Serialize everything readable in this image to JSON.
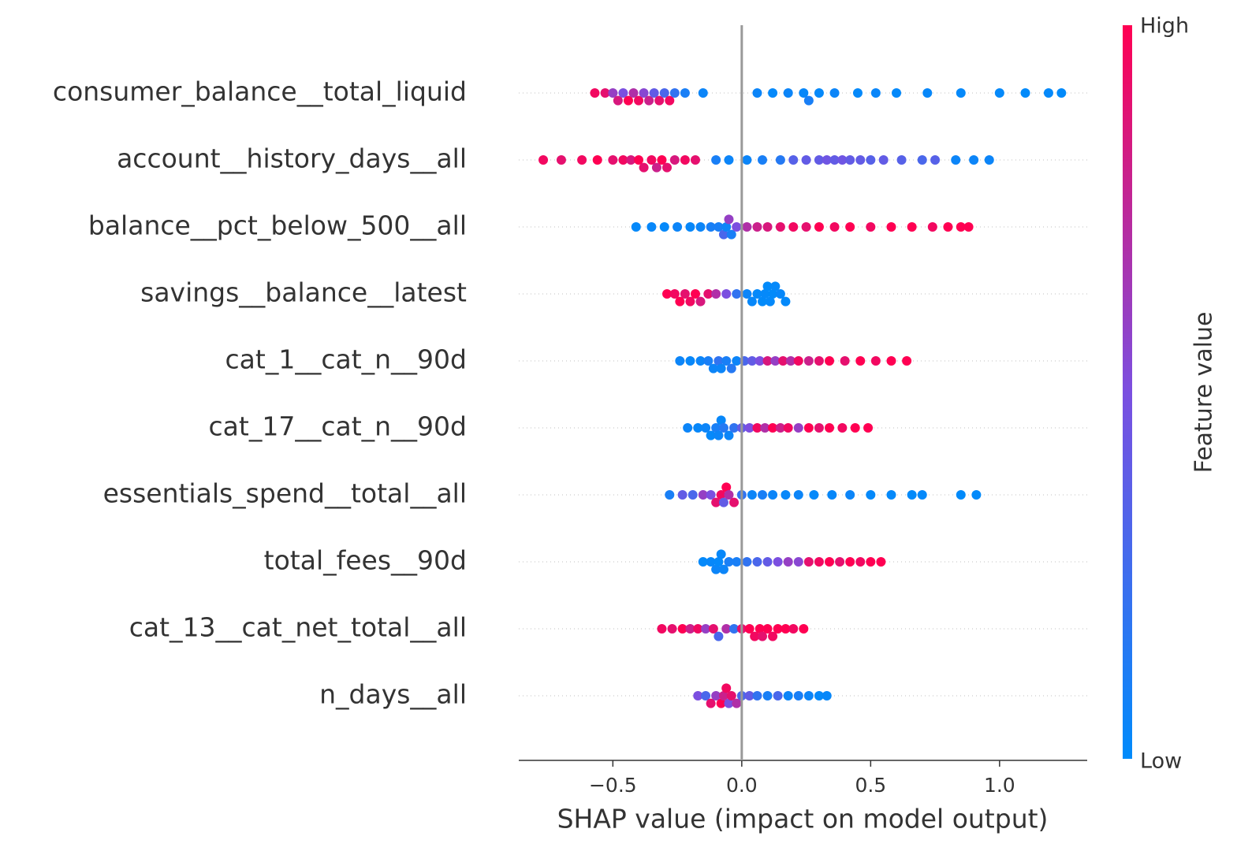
{
  "chart_data": {
    "type": "beeswarm",
    "xlabel": "SHAP value (impact on model output)",
    "xlim": [
      -0.865,
      1.34
    ],
    "xticks": [
      {
        "value": -0.5,
        "label": "−0.5"
      },
      {
        "value": 0,
        "label": "0.0"
      },
      {
        "value": 0.5,
        "label": "0.5"
      },
      {
        "value": 1,
        "label": "1.0"
      }
    ],
    "colorbar": {
      "label": "Feature value",
      "high": "High",
      "low": "Low",
      "colormap": [
        "#008bfb",
        "#7b4fe0",
        "#ff0052"
      ]
    },
    "rows": [
      {
        "name": "consumer_balance__total_liquid",
        "values": [
          -0.57,
          -0.53,
          -0.5,
          -0.48,
          -0.46,
          -0.44,
          -0.42,
          -0.4,
          -0.38,
          -0.36,
          -0.34,
          -0.32,
          -0.3,
          -0.28,
          -0.26,
          -0.22,
          -0.15,
          0.06,
          0.12,
          0.18,
          0.24,
          0.26,
          0.3,
          0.36,
          0.45,
          0.52,
          0.6,
          0.72,
          0.85,
          1.0,
          1.1,
          1.19,
          1.24
        ],
        "feature_values": [
          0.95,
          0.9,
          0.6,
          0.85,
          0.5,
          1,
          0.7,
          0.95,
          0.55,
          0.8,
          0.4,
          0.9,
          0.3,
          0.95,
          0.2,
          0.1,
          0.05,
          0.05,
          0.02,
          0.05,
          0.03,
          0.1,
          0.02,
          0.05,
          0.02,
          0.04,
          0.02,
          0.03,
          0.02,
          0.02,
          0.01,
          0.02,
          0.01
        ]
      },
      {
        "name": "account__history_days__all",
        "values": [
          -0.77,
          -0.7,
          -0.62,
          -0.56,
          -0.5,
          -0.46,
          -0.43,
          -0.4,
          -0.38,
          -0.35,
          -0.33,
          -0.31,
          -0.29,
          -0.26,
          -0.22,
          -0.18,
          -0.1,
          -0.05,
          0.02,
          0.08,
          0.15,
          0.2,
          0.25,
          0.3,
          0.33,
          0.36,
          0.39,
          0.42,
          0.46,
          0.5,
          0.55,
          0.62,
          0.7,
          0.75,
          0.83,
          0.9,
          0.96
        ],
        "feature_values": [
          0.95,
          0.9,
          0.95,
          1,
          0.9,
          0.95,
          0.85,
          1,
          0.9,
          0.95,
          0.8,
          1,
          0.9,
          0.85,
          0.95,
          0.9,
          0.1,
          0.05,
          0.05,
          0.1,
          0.15,
          0.35,
          0.4,
          0.4,
          0.45,
          0.4,
          0.45,
          0.4,
          0.4,
          0.35,
          0.4,
          0.35,
          0.3,
          0.35,
          0.05,
          0.05,
          0.05
        ]
      },
      {
        "name": "balance__pct_below_500__all",
        "values": [
          -0.41,
          -0.35,
          -0.3,
          -0.25,
          -0.2,
          -0.16,
          -0.12,
          -0.09,
          -0.07,
          -0.06,
          -0.05,
          -0.04,
          -0.02,
          0.02,
          0.06,
          0.1,
          0.15,
          0.2,
          0.25,
          0.3,
          0.36,
          0.42,
          0.5,
          0.58,
          0.66,
          0.74,
          0.8,
          0.85,
          0.88
        ],
        "feature_values": [
          0.02,
          0.03,
          0.02,
          0.05,
          0.03,
          0.05,
          0.1,
          0.1,
          0.3,
          0.05,
          0.6,
          0.1,
          0.5,
          0.7,
          0.8,
          0.85,
          0.9,
          0.95,
          0.9,
          1,
          0.95,
          1,
          0.95,
          1,
          1,
          0.95,
          1,
          1,
          1
        ]
      },
      {
        "name": "savings__balance__latest",
        "values": [
          -0.29,
          -0.26,
          -0.24,
          -0.22,
          -0.2,
          -0.18,
          -0.16,
          -0.13,
          -0.1,
          -0.06,
          -0.02,
          0.02,
          0.04,
          0.06,
          0.08,
          0.09,
          0.1,
          0.11,
          0.12,
          0.13,
          0.15,
          0.17
        ],
        "feature_values": [
          1,
          0.95,
          1,
          0.9,
          0.95,
          1,
          0.85,
          0.9,
          0.7,
          0.5,
          0.2,
          0.05,
          0.03,
          0.02,
          0.01,
          0.02,
          0.01,
          0.02,
          0.01,
          0.02,
          0.03,
          0.02
        ]
      },
      {
        "name": "cat_1__cat_n__90d",
        "values": [
          -0.24,
          -0.2,
          -0.16,
          -0.13,
          -0.11,
          -0.09,
          -0.08,
          -0.06,
          -0.04,
          -0.02,
          0.01,
          0.04,
          0.07,
          0.1,
          0.13,
          0.16,
          0.19,
          0.22,
          0.26,
          0.3,
          0.34,
          0.4,
          0.46,
          0.52,
          0.58,
          0.64
        ],
        "feature_values": [
          0.05,
          0.03,
          0.05,
          0.1,
          0.05,
          0.2,
          0.05,
          0.1,
          0.15,
          0.05,
          0.3,
          0.4,
          0.5,
          0.85,
          0.6,
          0.9,
          0.7,
          0.95,
          0.8,
          0.9,
          1,
          0.9,
          1,
          0.95,
          1,
          1
        ]
      },
      {
        "name": "cat_17__cat_n__90d",
        "values": [
          -0.21,
          -0.17,
          -0.14,
          -0.12,
          -0.1,
          -0.09,
          -0.08,
          -0.07,
          -0.05,
          -0.03,
          0.0,
          0.03,
          0.06,
          0.09,
          0.12,
          0.15,
          0.18,
          0.22,
          0.26,
          0.3,
          0.34,
          0.39,
          0.44,
          0.49
        ],
        "feature_values": [
          0.05,
          0.03,
          0.05,
          0.02,
          0.1,
          0.05,
          0.03,
          0.15,
          0.05,
          0.2,
          0.4,
          0.5,
          0.95,
          0.7,
          1,
          0.8,
          0.95,
          0.6,
          1,
          0.9,
          1,
          0.95,
          1,
          1
        ]
      },
      {
        "name": "essentials_spend__total__all",
        "values": [
          -0.28,
          -0.23,
          -0.19,
          -0.15,
          -0.12,
          -0.1,
          -0.08,
          -0.07,
          -0.06,
          -0.05,
          -0.03,
          0.0,
          0.04,
          0.08,
          0.12,
          0.17,
          0.22,
          0.28,
          0.35,
          0.42,
          0.5,
          0.58,
          0.66,
          0.7,
          0.85,
          0.91
        ],
        "feature_values": [
          0.1,
          0.4,
          0.3,
          0.6,
          0.5,
          0.9,
          0.95,
          0.4,
          1,
          0.7,
          0.9,
          0.2,
          0.05,
          0.1,
          0.05,
          0.03,
          0.05,
          0.02,
          0.03,
          0.05,
          0.02,
          0.02,
          0.01,
          0.02,
          0.01,
          0.01
        ]
      },
      {
        "name": "total_fees__90d",
        "values": [
          -0.15,
          -0.12,
          -0.1,
          -0.09,
          -0.08,
          -0.07,
          -0.05,
          -0.02,
          0.02,
          0.06,
          0.1,
          0.14,
          0.18,
          0.22,
          0.26,
          0.3,
          0.34,
          0.38,
          0.42,
          0.46,
          0.5,
          0.54
        ],
        "feature_values": [
          0.02,
          0.03,
          0.05,
          0.02,
          0.03,
          0.05,
          0.1,
          0.1,
          0.2,
          0.3,
          0.4,
          0.5,
          0.6,
          0.55,
          0.9,
          0.95,
          1,
          0.9,
          1,
          0.95,
          1,
          1
        ]
      },
      {
        "name": "cat_13__cat_net_total__all",
        "values": [
          -0.31,
          -0.27,
          -0.23,
          -0.2,
          -0.17,
          -0.14,
          -0.11,
          -0.09,
          -0.06,
          -0.03,
          0.0,
          0.03,
          0.05,
          0.07,
          0.08,
          0.1,
          0.12,
          0.14,
          0.17,
          0.2,
          0.24
        ],
        "feature_values": [
          0.95,
          0.9,
          1,
          0.8,
          0.95,
          0.6,
          0.9,
          0.3,
          0.7,
          0.2,
          0.9,
          1,
          0.95,
          1,
          0.9,
          1,
          0.95,
          1,
          1,
          0.95,
          1
        ]
      },
      {
        "name": "n_days__all",
        "values": [
          -0.17,
          -0.14,
          -0.12,
          -0.1,
          -0.08,
          -0.07,
          -0.06,
          -0.05,
          -0.04,
          -0.02,
          0.0,
          0.03,
          0.06,
          0.1,
          0.14,
          0.18,
          0.22,
          0.26,
          0.3,
          0.33
        ],
        "feature_values": [
          0.5,
          0.3,
          0.9,
          0.6,
          1,
          0.8,
          0.95,
          0.5,
          0.9,
          0.7,
          0.3,
          0.4,
          0.2,
          0.1,
          0.3,
          0.05,
          0.1,
          0.05,
          0.02,
          0.03
        ]
      }
    ]
  }
}
